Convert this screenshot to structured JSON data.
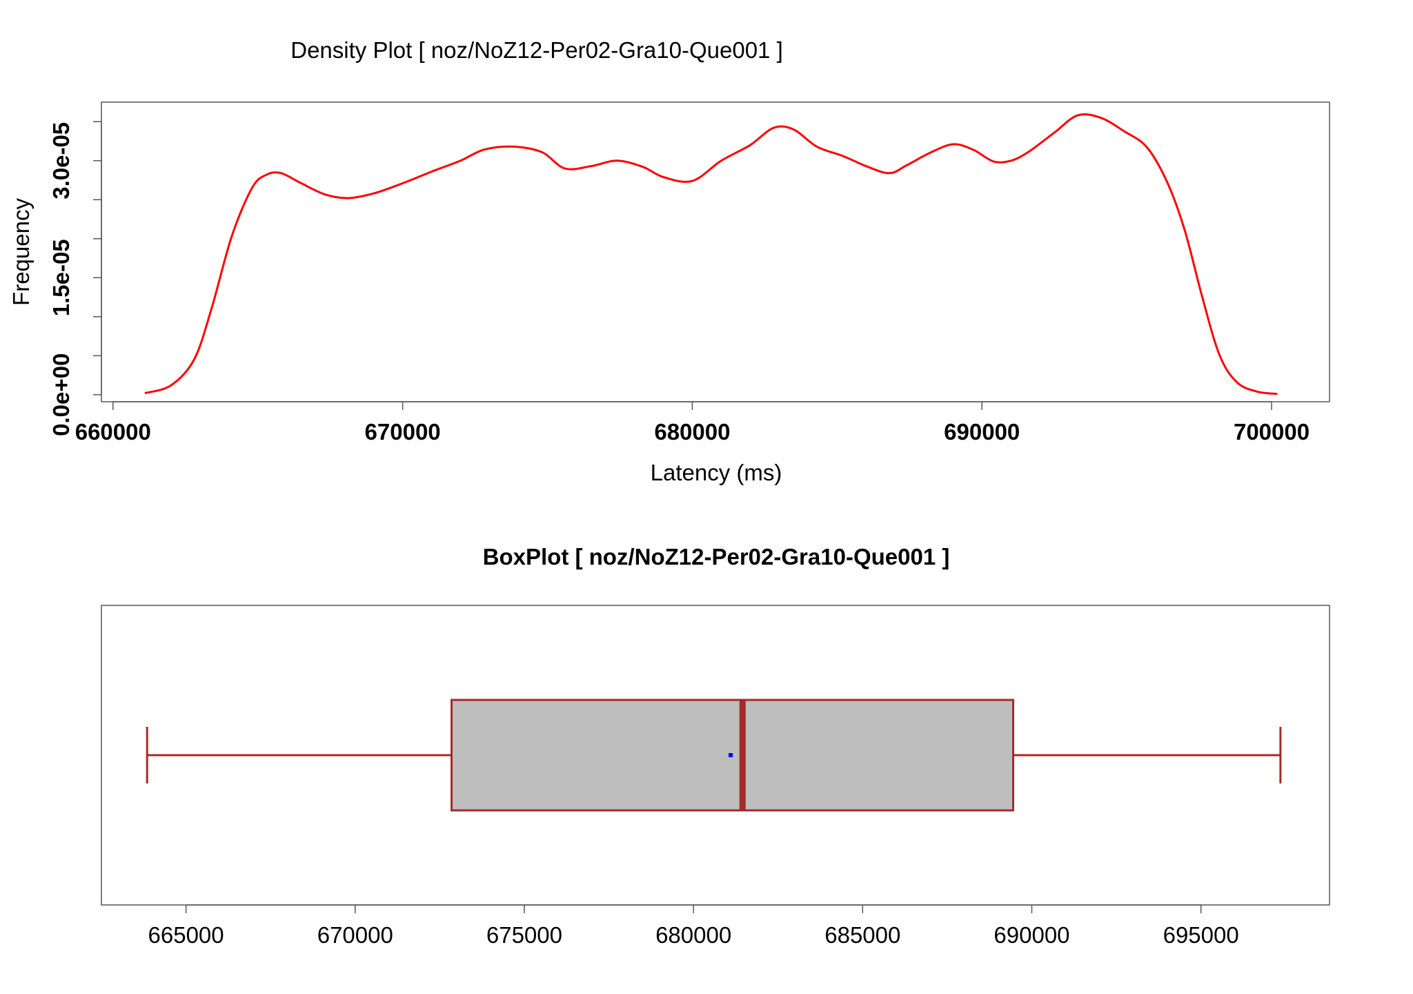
{
  "colors": {
    "density_line": "#ff0000",
    "box_fill": "#bebebe",
    "box_stroke": "#a52a2a",
    "mean_marker": "#0000ff",
    "frame": "#555555"
  },
  "chart_data": [
    {
      "type": "line",
      "title": "Density Plot [ noz/NoZ12-Per02-Gra10-Que001 ]",
      "xlabel": "Latency (ms)",
      "ylabel": "Frequency",
      "xlim": [
        659600,
        702000
      ],
      "ylim": [
        -9e-07,
        3.75e-05
      ],
      "x_ticks": [
        660000,
        670000,
        680000,
        690000,
        700000
      ],
      "x_tick_labels": [
        "660000",
        "670000",
        "680000",
        "690000",
        "700000"
      ],
      "y_ticks": [
        0,
        5e-06,
        1e-05,
        1.5e-05,
        2e-05,
        2.5e-05,
        3e-05,
        3.5e-05
      ],
      "y_tick_labels": [
        {
          "value": 0,
          "label": "0.0e+00"
        },
        {
          "value": 1.5e-05,
          "label": "1.5e-05"
        },
        {
          "value": 3e-05,
          "label": "3.0e-05"
        }
      ],
      "grid": false,
      "series": [
        {
          "x": [
            661100,
            662000,
            662800,
            663400,
            664100,
            664800,
            665300,
            665800,
            666500,
            667300,
            668100,
            669000,
            670000,
            671000,
            672000,
            672800,
            673800,
            674800,
            675600,
            676500,
            677400,
            678300,
            679000,
            680000,
            681000,
            682000,
            682800,
            683500,
            684300,
            685200,
            686000,
            686800,
            687400,
            688200,
            689000,
            689700,
            690400,
            691000,
            691600,
            692500,
            693300,
            694100,
            694900,
            695700,
            696400,
            697000,
            697600,
            698200,
            698800,
            699500,
            700200
          ],
          "y": [
            2e-07,
            1.2e-06,
            4.5e-06,
            1.1e-05,
            2.03e-05,
            2.65e-05,
            2.82e-05,
            2.84e-05,
            2.71e-05,
            2.57e-05,
            2.52e-05,
            2.58e-05,
            2.71e-05,
            2.86e-05,
            3e-05,
            3.14e-05,
            3.18e-05,
            3.11e-05,
            2.9e-05,
            2.93e-05,
            3e-05,
            2.92e-05,
            2.79e-05,
            2.74e-05,
            3e-05,
            3.2e-05,
            3.42e-05,
            3.4e-05,
            3.18e-05,
            3.06e-05,
            2.93e-05,
            2.84e-05,
            2.94e-05,
            3.1e-05,
            3.21e-05,
            3.14e-05,
            2.99e-05,
            3e-05,
            3.11e-05,
            3.36e-05,
            3.58e-05,
            3.55e-05,
            3.38e-05,
            3.17e-05,
            2.72e-05,
            2.11e-05,
            1.26e-05,
            5.1e-06,
            1.6e-06,
            4e-07,
            1e-07
          ]
        }
      ]
    },
    {
      "type": "box",
      "title": "BoxPlot [ noz/NoZ12-Per02-Gra10-Que001 ]",
      "xlim": [
        662500,
        698800
      ],
      "x_ticks": [
        665000,
        670000,
        675000,
        680000,
        685000,
        690000,
        695000
      ],
      "x_tick_labels": [
        "665000",
        "670000",
        "675000",
        "680000",
        "685000",
        "690000",
        "695000"
      ],
      "whisker_low": 663850,
      "q1": 672850,
      "median": 681450,
      "q3": 689450,
      "whisker_high": 697350,
      "mean": 681100
    }
  ]
}
